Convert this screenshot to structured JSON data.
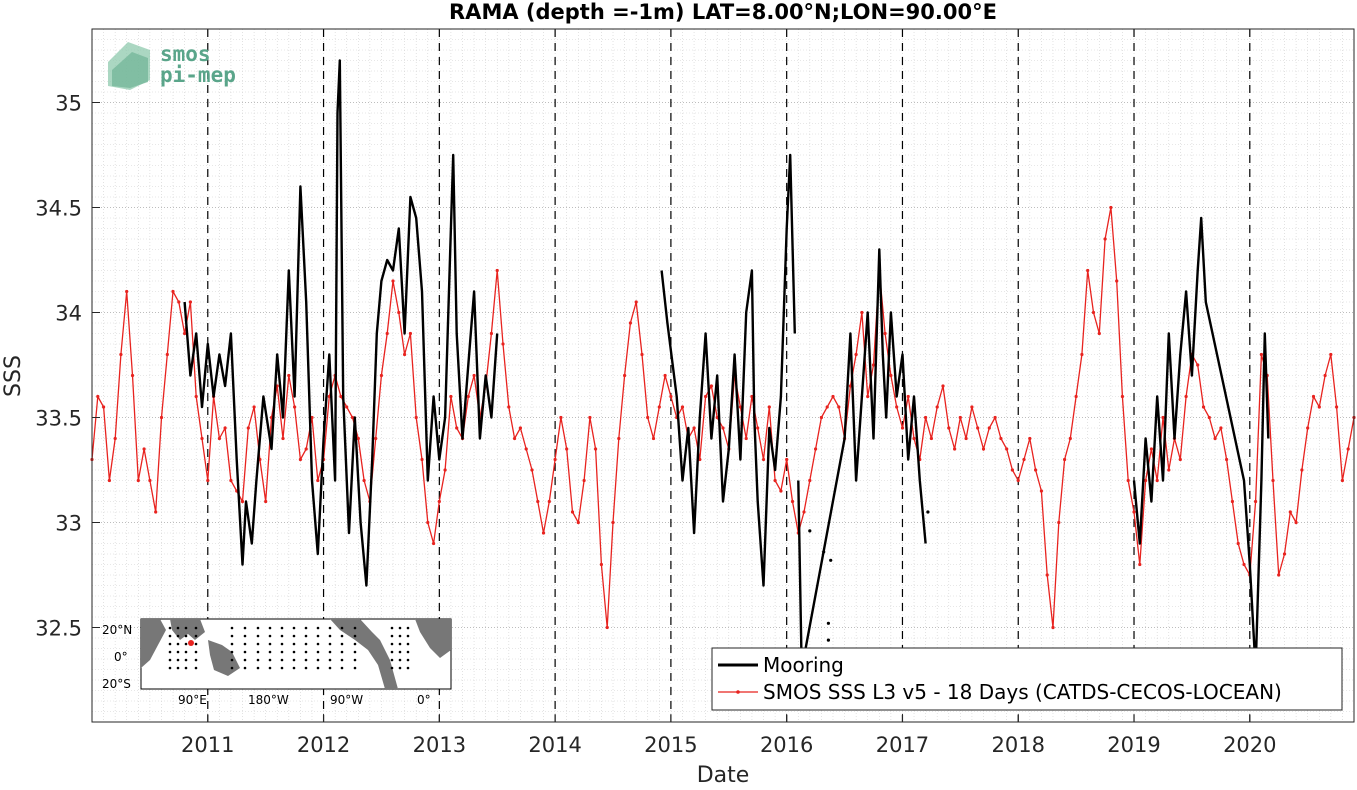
{
  "chart_data": {
    "type": "line",
    "title": "RAMA (depth =-1m) LAT=8.00°N;LON=90.00°E",
    "xlabel": "Date",
    "ylabel": "SSS",
    "xlim": [
      2010.0,
      2020.9
    ],
    "ylim": [
      32.05,
      35.35
    ],
    "x_ticks": [
      "2011",
      "2012",
      "2013",
      "2014",
      "2015",
      "2016",
      "2017",
      "2018",
      "2019",
      "2020"
    ],
    "y_ticks": [
      "32.5",
      "33",
      "33.5",
      "34",
      "34.5",
      "35"
    ],
    "grid": "minor dotted + yearly dashed verticals",
    "legend": "bottom-right",
    "series": [
      {
        "name": "Mooring",
        "color": "#000000",
        "style": "solid thick",
        "points": [
          [
            2010.8,
            34.05
          ],
          [
            2010.85,
            33.7
          ],
          [
            2010.9,
            33.9
          ],
          [
            2010.95,
            33.55
          ],
          [
            2011.0,
            33.85
          ],
          [
            2011.05,
            33.6
          ],
          [
            2011.1,
            33.8
          ],
          [
            2011.15,
            33.65
          ],
          [
            2011.2,
            33.9
          ],
          [
            2011.25,
            33.3
          ],
          [
            2011.3,
            32.8
          ],
          [
            2011.33,
            33.1
          ],
          [
            2011.38,
            32.9
          ],
          [
            2011.42,
            33.2
          ],
          [
            2011.48,
            33.6
          ],
          [
            2011.55,
            33.35
          ],
          [
            2011.6,
            33.8
          ],
          [
            2011.65,
            33.5
          ],
          [
            2011.7,
            34.2
          ],
          [
            2011.75,
            33.6
          ],
          [
            2011.8,
            34.6
          ],
          [
            2011.85,
            34.05
          ],
          [
            2011.9,
            33.2
          ],
          [
            2011.95,
            32.85
          ],
          [
            2012.0,
            33.4
          ],
          [
            2012.05,
            33.8
          ],
          [
            2012.1,
            33.2
          ],
          [
            2012.12,
            34.95
          ],
          [
            2012.14,
            35.2
          ],
          [
            2012.17,
            33.6
          ],
          [
            2012.22,
            32.95
          ],
          [
            2012.27,
            33.5
          ],
          [
            2012.32,
            33.0
          ],
          [
            2012.37,
            32.7
          ],
          [
            2012.42,
            33.3
          ],
          [
            2012.46,
            33.9
          ],
          [
            2012.5,
            34.15
          ],
          [
            2012.55,
            34.25
          ],
          [
            2012.6,
            34.2
          ],
          [
            2012.65,
            34.4
          ],
          [
            2012.7,
            33.9
          ],
          [
            2012.75,
            34.55
          ],
          [
            2012.8,
            34.45
          ],
          [
            2012.85,
            34.1
          ],
          [
            2012.9,
            33.2
          ],
          [
            2012.95,
            33.6
          ],
          [
            2013.0,
            33.3
          ],
          [
            2013.05,
            33.5
          ],
          [
            2013.1,
            34.4
          ],
          [
            2013.12,
            34.75
          ],
          [
            2013.15,
            33.9
          ],
          [
            2013.2,
            33.4
          ],
          [
            2013.25,
            33.75
          ],
          [
            2013.3,
            34.1
          ],
          [
            2013.35,
            33.4
          ],
          [
            2013.4,
            33.7
          ],
          [
            2013.45,
            33.5
          ],
          [
            2013.5,
            33.9
          ],
          [
            2014.92,
            34.2
          ],
          [
            2014.97,
            33.95
          ],
          [
            2015.05,
            33.6
          ],
          [
            2015.1,
            33.2
          ],
          [
            2015.15,
            33.45
          ],
          [
            2015.2,
            32.95
          ],
          [
            2015.25,
            33.5
          ],
          [
            2015.3,
            33.9
          ],
          [
            2015.35,
            33.4
          ],
          [
            2015.4,
            33.7
          ],
          [
            2015.45,
            33.1
          ],
          [
            2015.5,
            33.35
          ],
          [
            2015.55,
            33.8
          ],
          [
            2015.6,
            33.3
          ],
          [
            2015.65,
            34.0
          ],
          [
            2015.7,
            34.2
          ],
          [
            2015.72,
            33.5
          ],
          [
            2015.75,
            33.1
          ],
          [
            2015.8,
            32.7
          ],
          [
            2015.85,
            33.45
          ],
          [
            2015.9,
            33.25
          ],
          [
            2015.95,
            33.6
          ],
          [
            2016.0,
            34.4
          ],
          [
            2016.03,
            34.75
          ],
          [
            2016.07,
            33.9
          ],
          [
            2016.1,
            33.2
          ],
          [
            2016.13,
            32.3
          ],
          [
            2016.5,
            33.4
          ],
          [
            2016.55,
            33.9
          ],
          [
            2016.6,
            33.2
          ],
          [
            2016.65,
            33.6
          ],
          [
            2016.7,
            34.0
          ],
          [
            2016.75,
            33.4
          ],
          [
            2016.8,
            34.3
          ],
          [
            2016.83,
            33.8
          ],
          [
            2016.86,
            33.5
          ],
          [
            2016.9,
            34.0
          ],
          [
            2016.95,
            33.6
          ],
          [
            2017.0,
            33.8
          ],
          [
            2017.05,
            33.3
          ],
          [
            2017.1,
            33.6
          ],
          [
            2017.15,
            33.2
          ],
          [
            2017.2,
            32.9
          ]
        ],
        "segment_breaks": [
          58,
          83
        ],
        "extra_points": [
          [
            2019.0,
            33.2
          ],
          [
            2019.05,
            32.9
          ],
          [
            2019.1,
            33.4
          ],
          [
            2019.15,
            33.1
          ],
          [
            2019.2,
            33.6
          ],
          [
            2019.25,
            33.2
          ],
          [
            2019.3,
            33.9
          ],
          [
            2019.35,
            33.4
          ],
          [
            2019.4,
            33.8
          ],
          [
            2019.45,
            34.1
          ],
          [
            2019.5,
            33.7
          ],
          [
            2019.55,
            34.2
          ],
          [
            2019.58,
            34.45
          ],
          [
            2019.62,
            34.05
          ],
          [
            2019.95,
            33.2
          ],
          [
            2020.0,
            32.8
          ],
          [
            2020.05,
            32.3
          ],
          [
            2020.1,
            33.2
          ],
          [
            2020.13,
            33.9
          ],
          [
            2020.16,
            33.4
          ]
        ],
        "isolated_points": [
          [
            2016.2,
            32.96
          ],
          [
            2016.32,
            32.86
          ],
          [
            2016.38,
            32.82
          ],
          [
            2016.36,
            32.52
          ],
          [
            2016.36,
            32.44
          ],
          [
            2017.22,
            33.05
          ]
        ]
      },
      {
        "name": "SMOS SSS L3 v5 - 18 Days (CATDS-CECOS-LOCEAN)",
        "color": "#e8231f",
        "style": "thin line with dot markers",
        "x": [
          2010.0,
          2010.05,
          2010.1,
          2010.15,
          2010.2,
          2010.25,
          2010.3,
          2010.35,
          2010.4,
          2010.45,
          2010.5,
          2010.55,
          2010.6,
          2010.65,
          2010.7,
          2010.75,
          2010.8,
          2010.85,
          2010.9,
          2010.95,
          2011.0,
          2011.05,
          2011.1,
          2011.15,
          2011.2,
          2011.25,
          2011.3,
          2011.35,
          2011.4,
          2011.45,
          2011.5,
          2011.55,
          2011.6,
          2011.65,
          2011.7,
          2011.75,
          2011.8,
          2011.85,
          2011.9,
          2011.95,
          2012.0,
          2012.05,
          2012.1,
          2012.15,
          2012.2,
          2012.25,
          2012.3,
          2012.35,
          2012.4,
          2012.45,
          2012.5,
          2012.55,
          2012.6,
          2012.65,
          2012.7,
          2012.75,
          2012.8,
          2012.85,
          2012.9,
          2012.95,
          2013.0,
          2013.05,
          2013.1,
          2013.15,
          2013.2,
          2013.25,
          2013.3,
          2013.35,
          2013.4,
          2013.45,
          2013.5,
          2013.55,
          2013.6,
          2013.65,
          2013.7,
          2013.75,
          2013.8,
          2013.85,
          2013.9,
          2013.95,
          2014.0,
          2014.05,
          2014.1,
          2014.15,
          2014.2,
          2014.25,
          2014.3,
          2014.35,
          2014.4,
          2014.45,
          2014.5,
          2014.55,
          2014.6,
          2014.65,
          2014.7,
          2014.75,
          2014.8,
          2014.85,
          2014.9,
          2014.95,
          2015.0,
          2015.05,
          2015.1,
          2015.15,
          2015.2,
          2015.25,
          2015.3,
          2015.35,
          2015.4,
          2015.45,
          2015.5,
          2015.55,
          2015.6,
          2015.65,
          2015.7,
          2015.75,
          2015.8,
          2015.85,
          2015.9,
          2015.95,
          2016.0,
          2016.05,
          2016.1,
          2016.15,
          2016.2,
          2016.25,
          2016.3,
          2016.35,
          2016.4,
          2016.45,
          2016.5,
          2016.55,
          2016.6,
          2016.65,
          2016.7,
          2016.75,
          2016.8,
          2016.85,
          2016.9,
          2016.95,
          2017.0,
          2017.05,
          2017.1,
          2017.15,
          2017.2,
          2017.25,
          2017.3,
          2017.35,
          2017.4,
          2017.45,
          2017.5,
          2017.55,
          2017.6,
          2017.65,
          2017.7,
          2017.75,
          2017.8,
          2017.85,
          2017.9,
          2017.95,
          2018.0,
          2018.05,
          2018.1,
          2018.15,
          2018.2,
          2018.25,
          2018.3,
          2018.35,
          2018.4,
          2018.45,
          2018.5,
          2018.55,
          2018.6,
          2018.65,
          2018.7,
          2018.75,
          2018.8,
          2018.85,
          2018.9,
          2018.95,
          2019.0,
          2019.05,
          2019.1,
          2019.15,
          2019.2,
          2019.25,
          2019.3,
          2019.35,
          2019.4,
          2019.45,
          2019.5,
          2019.55,
          2019.6,
          2019.65,
          2019.7,
          2019.75,
          2019.8,
          2019.85,
          2019.9,
          2019.95,
          2020.0,
          2020.05,
          2020.1,
          2020.15,
          2020.2,
          2020.25,
          2020.3,
          2020.35,
          2020.4,
          2020.45,
          2020.5,
          2020.55,
          2020.6,
          2020.65,
          2020.7,
          2020.75,
          2020.8,
          2020.85,
          2020.9
        ],
        "values": [
          33.3,
          33.6,
          33.55,
          33.2,
          33.4,
          33.8,
          34.1,
          33.7,
          33.2,
          33.35,
          33.2,
          33.05,
          33.5,
          33.8,
          34.1,
          34.05,
          33.9,
          34.05,
          33.6,
          33.4,
          33.2,
          33.6,
          33.4,
          33.45,
          33.2,
          33.15,
          33.1,
          33.45,
          33.55,
          33.3,
          33.1,
          33.5,
          33.65,
          33.4,
          33.7,
          33.55,
          33.3,
          33.35,
          33.5,
          33.2,
          33.3,
          33.6,
          33.7,
          33.6,
          33.55,
          33.5,
          33.4,
          33.2,
          33.1,
          33.4,
          33.7,
          33.9,
          34.15,
          34.0,
          33.8,
          33.9,
          33.5,
          33.3,
          33.0,
          32.9,
          33.1,
          33.25,
          33.6,
          33.45,
          33.4,
          33.6,
          33.7,
          33.5,
          33.65,
          33.9,
          34.2,
          33.85,
          33.55,
          33.4,
          33.45,
          33.35,
          33.25,
          33.1,
          32.95,
          33.1,
          33.3,
          33.5,
          33.35,
          33.05,
          33.0,
          33.2,
          33.5,
          33.35,
          32.8,
          32.5,
          33.0,
          33.4,
          33.7,
          33.95,
          34.05,
          33.8,
          33.5,
          33.4,
          33.55,
          33.7,
          33.6,
          33.5,
          33.55,
          33.4,
          33.45,
          33.3,
          33.6,
          33.65,
          33.5,
          33.45,
          33.35,
          33.7,
          33.55,
          33.4,
          33.6,
          33.45,
          33.3,
          33.55,
          33.2,
          33.15,
          33.3,
          33.1,
          32.95,
          33.05,
          33.2,
          33.35,
          33.5,
          33.55,
          33.6,
          33.55,
          33.4,
          33.65,
          33.8,
          34.0,
          33.6,
          33.75,
          34.2,
          33.9,
          33.7,
          33.55,
          33.45,
          33.6,
          33.4,
          33.3,
          33.5,
          33.4,
          33.55,
          33.65,
          33.45,
          33.35,
          33.5,
          33.4,
          33.55,
          33.45,
          33.35,
          33.45,
          33.5,
          33.4,
          33.35,
          33.25,
          33.2,
          33.3,
          33.4,
          33.25,
          33.15,
          32.75,
          32.5,
          33.0,
          33.3,
          33.4,
          33.6,
          33.8,
          34.2,
          34.0,
          33.9,
          34.35,
          34.5,
          34.15,
          33.6,
          33.2,
          33.05,
          32.8,
          33.2,
          33.35,
          33.2,
          33.5,
          33.25,
          33.4,
          33.3,
          33.6,
          33.8,
          33.75,
          33.55,
          33.5,
          33.4,
          33.45,
          33.3,
          33.1,
          32.9,
          32.8,
          32.75,
          33.1,
          33.8,
          33.7,
          33.2,
          32.75,
          32.85,
          33.05,
          33.0,
          33.25,
          33.45,
          33.6,
          33.55,
          33.7,
          33.8,
          33.55,
          33.2,
          33.35,
          33.5
        ]
      }
    ]
  },
  "inset_map": {
    "lat_labels": [
      "20°N",
      "0°",
      "20°S"
    ],
    "lon_labels": [
      "90°E",
      "180°W",
      "90°W",
      "0°"
    ]
  },
  "logo": {
    "line1": "smos",
    "line2": "pi-mep"
  }
}
